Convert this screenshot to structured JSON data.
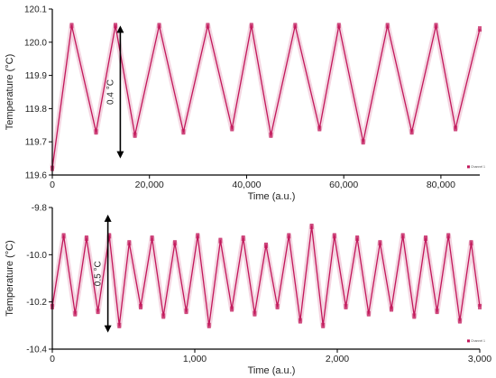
{
  "chart_data": [
    {
      "type": "line",
      "panel": "top",
      "xlabel": "Time (a.u.)",
      "ylabel": "Temperature (°C)",
      "xlim": [
        0,
        88000
      ],
      "ylim": [
        119.6,
        120.1
      ],
      "x_ticks": [
        0,
        20000,
        40000,
        60000,
        80000
      ],
      "x_tick_labels": [
        "0",
        "20,000",
        "40,000",
        "60,000",
        "80,000"
      ],
      "y_ticks": [
        119.6,
        119.7,
        119.8,
        119.9,
        120.0,
        120.1
      ],
      "y_tick_labels": [
        "119.6",
        "119.7",
        "119.8",
        "119.9",
        "120.0",
        "120.1"
      ],
      "legend_text": "Channel 1",
      "legend_position": "bottom-right",
      "annotation": {
        "text": "0.4 °C",
        "y_from": 119.65,
        "y_to": 120.05,
        "x": 14000
      },
      "grid": false,
      "series": [
        {
          "color": "#c2185b",
          "x": [
            0,
            4000,
            9000,
            13000,
            17000,
            22000,
            27000,
            32000,
            37000,
            41000,
            45000,
            50000,
            55000,
            59000,
            64000,
            69000,
            74000,
            79000,
            83000,
            88000
          ],
          "y": [
            119.62,
            120.05,
            119.73,
            120.05,
            119.72,
            120.05,
            119.73,
            120.05,
            119.74,
            120.05,
            119.72,
            120.05,
            119.74,
            120.05,
            119.7,
            120.05,
            119.73,
            120.05,
            119.74,
            120.04
          ]
        }
      ]
    },
    {
      "type": "line",
      "panel": "bottom",
      "xlabel": "Time (a.u.)",
      "ylabel": "Temperature (°C)",
      "xlim": [
        0,
        3000
      ],
      "ylim": [
        -10.4,
        -9.8
      ],
      "x_ticks": [
        0,
        1000,
        2000,
        3000
      ],
      "x_tick_labels": [
        "0",
        "1,000",
        "2,000",
        "3,000"
      ],
      "y_ticks": [
        -10.4,
        -10.2,
        -10.0,
        -9.8
      ],
      "y_tick_labels": [
        "-10.4",
        "-10.2",
        "-10.0",
        "-9.8"
      ],
      "legend_text": "Channel 1",
      "legend_position": "bottom-right",
      "annotation": {
        "text": "0.5 °C",
        "y_from": -10.33,
        "y_to": -9.83,
        "x": 390
      },
      "grid": false,
      "series": [
        {
          "color": "#c2185b",
          "x": [
            0,
            80,
            160,
            240,
            320,
            400,
            470,
            540,
            620,
            700,
            780,
            860,
            940,
            1020,
            1100,
            1180,
            1260,
            1340,
            1420,
            1500,
            1580,
            1660,
            1740,
            1820,
            1900,
            1980,
            2060,
            2140,
            2220,
            2300,
            2380,
            2460,
            2540,
            2620,
            2700,
            2780,
            2860,
            2940,
            3000
          ],
          "y": [
            -10.22,
            -9.92,
            -10.25,
            -9.93,
            -10.24,
            -9.92,
            -10.3,
            -9.95,
            -10.22,
            -9.93,
            -10.26,
            -9.95,
            -10.24,
            -9.92,
            -10.3,
            -9.94,
            -10.23,
            -9.93,
            -10.25,
            -9.96,
            -10.22,
            -9.92,
            -10.28,
            -9.88,
            -10.3,
            -9.92,
            -10.22,
            -9.93,
            -10.25,
            -9.95,
            -10.23,
            -9.92,
            -10.26,
            -9.93,
            -10.24,
            -9.92,
            -10.28,
            -9.95,
            -10.22
          ]
        }
      ]
    }
  ]
}
